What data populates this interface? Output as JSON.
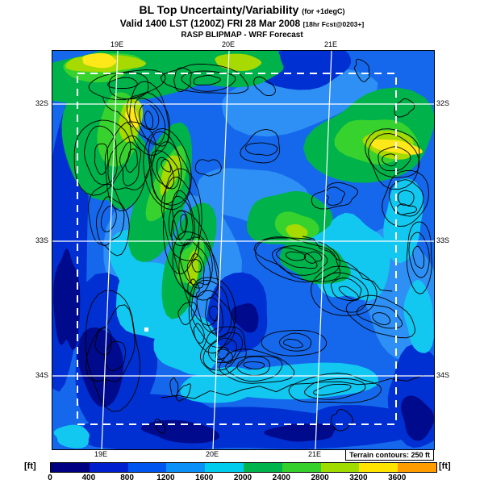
{
  "header": {
    "title_main": "BL Top Uncertainty/Variability",
    "title_note": "(for +1degC)",
    "valid_line": "Valid 1400 LST (1200Z) FRI 28 Mar 2008",
    "valid_note": "[18hr Fcst@0203+]",
    "model_line": "RASP BLIPMAP - WRF Forecast"
  },
  "map": {
    "lat_labels": [
      "32S",
      "33S",
      "34S"
    ],
    "lon_labels": [
      "19E",
      "20E",
      "21E"
    ],
    "terrain_note": "Terrain contours: 250 ft"
  },
  "legend": {
    "unit": "[ft]",
    "ticks": [
      "0",
      "400",
      "800",
      "1200",
      "1600",
      "2000",
      "2400",
      "2800",
      "3200",
      "3600"
    ],
    "colors": [
      "#000082",
      "#0020d0",
      "#0055f0",
      "#0b90f8",
      "#00ccee",
      "#00b44c",
      "#36d02c",
      "#a0dc00",
      "#ffe400",
      "#ff9c00"
    ]
  },
  "chart_data": {
    "type": "heatmap",
    "title": "BL Top Uncertainty/Variability (for +1degC)",
    "valid": "1400 LST (1200Z) FRI 28 Mar 2008",
    "model": "RASP BLIPMAP - WRF Forecast",
    "units": "ft",
    "colorbar_ticks": [
      0,
      400,
      800,
      1200,
      1600,
      2000,
      2400,
      2800,
      3200,
      3600
    ],
    "colorbar_colors": [
      "#000082",
      "#0020d0",
      "#0055f0",
      "#0b90f8",
      "#00ccee",
      "#00b44c",
      "#36d02c",
      "#a0dc00",
      "#ffe400",
      "#ff9c00"
    ],
    "x_axis": {
      "label": "longitude",
      "ticks": [
        "19E",
        "20E",
        "21E"
      ]
    },
    "y_axis": {
      "label": "latitude",
      "ticks": [
        "32S",
        "33S",
        "34S"
      ]
    },
    "annotations": [
      "Terrain contours: 250 ft"
    ],
    "description": "Filled-contour forecast map, mostly 400-1200 ft (blues) with 1600-3600 ft (greens/yellows) over mountain ridges in the northwest, north and northeast; black terrain contours every 250 ft; white lat/lon grid; white dashed model-domain boundary."
  }
}
